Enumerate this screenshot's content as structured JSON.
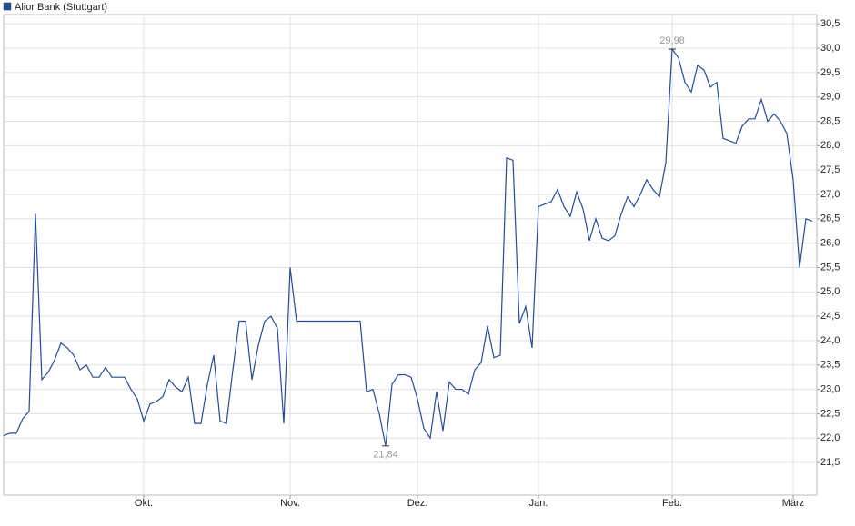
{
  "chart_data": {
    "type": "line",
    "series": [
      {
        "name": "Alior Bank (Stuttgart)",
        "color": "#1f4e9c",
        "values": [
          22.05,
          22.1,
          22.1,
          22.4,
          22.55,
          26.6,
          23.2,
          23.35,
          23.6,
          23.95,
          23.85,
          23.7,
          23.4,
          23.5,
          23.25,
          23.25,
          23.45,
          23.25,
          23.25,
          23.25,
          23.0,
          22.8,
          22.35,
          22.7,
          22.75,
          22.85,
          23.2,
          23.05,
          22.95,
          23.25,
          22.3,
          22.3,
          23.1,
          23.7,
          22.35,
          22.3,
          23.4,
          24.4,
          24.4,
          23.2,
          23.9,
          24.4,
          24.5,
          24.25,
          22.3,
          25.5,
          24.4,
          24.4,
          24.4,
          24.4,
          24.4,
          24.4,
          24.4,
          24.4,
          24.4,
          24.4,
          24.4,
          22.95,
          23.0,
          22.5,
          21.84,
          23.1,
          23.3,
          23.3,
          23.25,
          22.8,
          22.2,
          22.0,
          22.95,
          22.15,
          23.15,
          23.0,
          23.0,
          22.9,
          23.4,
          23.55,
          24.3,
          23.65,
          23.7,
          27.75,
          27.7,
          24.35,
          24.7,
          23.85,
          26.75,
          26.8,
          26.85,
          27.1,
          26.75,
          26.55,
          27.05,
          26.7,
          26.05,
          26.5,
          26.1,
          26.05,
          26.15,
          26.6,
          26.95,
          26.75,
          27.0,
          27.3,
          27.1,
          26.95,
          27.65,
          29.98,
          29.8,
          29.3,
          29.1,
          29.65,
          29.55,
          29.2,
          29.3,
          28.15,
          28.1,
          28.05,
          28.4,
          28.55,
          28.55,
          28.95,
          28.5,
          28.65,
          28.5,
          28.25,
          27.3,
          25.5,
          26.5,
          26.45
        ],
        "value_labels": [
          null,
          null,
          null,
          null,
          null,
          null,
          null,
          null,
          null,
          null,
          null,
          null,
          null,
          null,
          null,
          null,
          null,
          null,
          null,
          null,
          null,
          null,
          null,
          null,
          null,
          null,
          null,
          null,
          null,
          null,
          null,
          null,
          null,
          null,
          null,
          null,
          null,
          null,
          null,
          null,
          null,
          null,
          null,
          null,
          null,
          null,
          null,
          null,
          null,
          null,
          null,
          null,
          null,
          null,
          null,
          null,
          null,
          null,
          null,
          null,
          "21,84",
          null,
          null,
          null,
          null,
          null,
          null,
          null,
          null,
          null,
          null,
          null,
          null,
          null,
          null,
          null,
          null,
          null,
          null,
          null,
          null,
          null,
          null,
          null,
          null,
          null,
          null,
          null,
          null,
          null,
          null,
          null,
          null,
          null,
          null,
          null,
          null,
          null,
          null,
          null,
          null,
          null,
          null,
          null,
          null,
          "29,98",
          null,
          null,
          null,
          null,
          null,
          null,
          null,
          null,
          null,
          null,
          null,
          null,
          null,
          null,
          null,
          null,
          null,
          null,
          null,
          null,
          null,
          null
        ]
      }
    ],
    "categories": [
      null,
      null,
      null,
      null,
      null,
      null,
      null,
      null,
      null,
      null,
      null,
      null,
      null,
      null,
      null,
      null,
      null,
      null,
      null,
      null,
      null,
      null,
      "Okt.",
      null,
      null,
      null,
      null,
      null,
      null,
      null,
      null,
      null,
      null,
      null,
      null,
      null,
      null,
      null,
      null,
      null,
      null,
      null,
      null,
      null,
      null,
      "Nov.",
      null,
      null,
      null,
      null,
      null,
      null,
      null,
      null,
      null,
      null,
      null,
      null,
      null,
      null,
      null,
      null,
      null,
      null,
      null,
      "Dez.",
      null,
      null,
      null,
      null,
      null,
      null,
      null,
      null,
      null,
      null,
      null,
      null,
      null,
      null,
      null,
      null,
      null,
      null,
      "Jan.",
      null,
      null,
      null,
      null,
      null,
      null,
      null,
      null,
      null,
      null,
      null,
      null,
      null,
      null,
      null,
      null,
      null,
      null,
      null,
      null,
      "Feb.",
      null,
      null,
      null,
      null,
      null,
      null,
      null,
      null,
      null,
      null,
      null,
      null,
      null,
      null,
      null,
      null,
      null,
      null,
      "März",
      null,
      null,
      null
    ],
    "ylim": [
      20.83,
      30.69
    ],
    "yticks": [
      {
        "value": 21.5,
        "label": "21,5"
      },
      {
        "value": 22,
        "label": "22,0"
      },
      {
        "value": 22.5,
        "label": "22,5"
      },
      {
        "value": 23,
        "label": "23,0"
      },
      {
        "value": 23.5,
        "label": "23,5"
      },
      {
        "value": 24,
        "label": "24,0"
      },
      {
        "value": 24.5,
        "label": "24,5"
      },
      {
        "value": 25,
        "label": "25,0"
      },
      {
        "value": 25.5,
        "label": "25,5"
      },
      {
        "value": 26,
        "label": "26,0"
      },
      {
        "value": 26.5,
        "label": "26,5"
      },
      {
        "value": 27,
        "label": "27,0"
      },
      {
        "value": 27.5,
        "label": "27,5"
      },
      {
        "value": 28,
        "label": "28,0"
      },
      {
        "value": 28.5,
        "label": "28,5"
      },
      {
        "value": 29,
        "label": "29,0"
      },
      {
        "value": 29.5,
        "label": "29,5"
      },
      {
        "value": 30,
        "label": "30,0"
      },
      {
        "value": 30.5,
        "label": "30,5"
      }
    ],
    "grid": true
  }
}
